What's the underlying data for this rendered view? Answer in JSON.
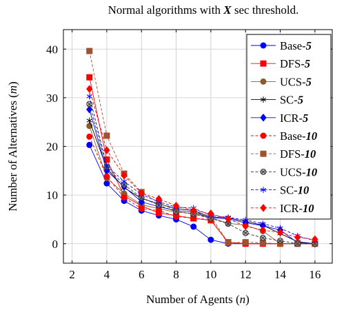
{
  "chart_data": {
    "type": "line",
    "title_parts": [
      {
        "text": "Normal algorithms with ",
        "italic": false,
        "bold": false
      },
      {
        "text": "X",
        "italic": true,
        "bold": true
      },
      {
        "text": " sec threshold.",
        "italic": false,
        "bold": false
      }
    ],
    "xlabel_parts": [
      {
        "text": "Number of Agents (",
        "italic": false
      },
      {
        "text": "n",
        "italic": true
      },
      {
        "text": ")",
        "italic": false
      }
    ],
    "ylabel_parts": [
      {
        "text": "Number of Alternatives (",
        "italic": false
      },
      {
        "text": "m",
        "italic": true
      },
      {
        "text": ")",
        "italic": false
      }
    ],
    "xlim": [
      1.5,
      17
    ],
    "ylim": [
      -4,
      44
    ],
    "xticks": [
      2,
      4,
      6,
      8,
      10,
      12,
      14,
      16
    ],
    "yticks": [
      0,
      10,
      20,
      30,
      40
    ],
    "grid": true,
    "legend_position": "top-right",
    "series": [
      {
        "name": "Base-",
        "suffix": "5",
        "color": "#0000ff",
        "marker": "circle",
        "dashed": false,
        "filled": true,
        "x": [
          3,
          4,
          5,
          6,
          7,
          8,
          9,
          10,
          11,
          12,
          13,
          14,
          15,
          16
        ],
        "y": [
          20.3,
          12.4,
          8.8,
          6.8,
          5.8,
          5,
          3.5,
          0.8,
          0,
          0,
          0,
          0,
          0,
          0
        ]
      },
      {
        "name": "DFS-",
        "suffix": "5",
        "color": "#ff0000",
        "marker": "square",
        "dashed": false,
        "filled": true,
        "x": [
          3,
          4,
          5,
          6,
          7,
          8,
          9,
          10,
          11,
          12,
          13,
          14,
          15,
          16
        ],
        "y": [
          34.2,
          17.3,
          9.8,
          7.8,
          6.3,
          5.8,
          5.2,
          4.8,
          0.3,
          0,
          0,
          0,
          0,
          0
        ]
      },
      {
        "name": "UCS-",
        "suffix": "5",
        "color": "#8b5a2b",
        "marker": "circle",
        "dashed": false,
        "filled": true,
        "x": [
          3,
          4,
          5,
          6,
          7,
          8,
          9,
          10,
          11,
          12,
          13,
          14,
          15,
          16
        ],
        "y": [
          24.2,
          13.5,
          10.3,
          8,
          7.2,
          6.5,
          6.2,
          5.3,
          4.2,
          3.8,
          2.6,
          0,
          0,
          0
        ]
      },
      {
        "name": "SC-",
        "suffix": "5",
        "color": "#000000",
        "marker": "star",
        "dashed": false,
        "filled": true,
        "x": [
          3,
          4,
          5,
          6,
          7,
          8,
          9,
          10,
          11,
          12,
          13,
          14,
          15,
          16
        ],
        "y": [
          25.3,
          15.5,
          11.5,
          9.3,
          8.2,
          7.2,
          6.8,
          5.5,
          5.3,
          4.6,
          3.8,
          2.1,
          0.4,
          0
        ]
      },
      {
        "name": "ICR-",
        "suffix": "5",
        "color": "#0000ff",
        "marker": "diamond",
        "dashed": false,
        "filled": true,
        "x": [
          3,
          4,
          5,
          6,
          7,
          8,
          9,
          10,
          11,
          12,
          13,
          14,
          15,
          16
        ],
        "y": [
          27.6,
          15,
          11.7,
          8.6,
          7.6,
          6.8,
          6.5,
          5.3,
          5.1,
          4.3,
          3.7,
          2.8,
          0.2,
          0
        ]
      },
      {
        "name": "Base-",
        "suffix": "10",
        "color": "#ff0000",
        "marker": "circle",
        "dashed": true,
        "filled": true,
        "x": [
          3,
          4,
          5,
          6,
          7,
          8,
          9,
          10,
          11,
          12,
          13,
          14,
          15,
          16
        ],
        "y": [
          22,
          13.8,
          9.5,
          7.2,
          6.8,
          5.6,
          5.2,
          5,
          0.1,
          0,
          0,
          0,
          0,
          0
        ]
      },
      {
        "name": "DFS-",
        "suffix": "10",
        "color": "#a0522d",
        "marker": "square",
        "dashed": true,
        "filled": true,
        "x": [
          3,
          4,
          5,
          6,
          7,
          8,
          9,
          10,
          11,
          12,
          13,
          14,
          15,
          16
        ],
        "y": [
          39.6,
          22.2,
          14.4,
          10.6,
          8.4,
          6.8,
          6.5,
          5.6,
          0.2,
          0.3,
          0.2,
          0,
          0,
          0
        ]
      },
      {
        "name": "UCS-",
        "suffix": "10",
        "color": "#333333",
        "marker": "otimes",
        "dashed": true,
        "filled": false,
        "x": [
          3,
          4,
          5,
          6,
          7,
          8,
          9,
          10,
          11,
          12,
          13,
          14,
          15,
          16
        ],
        "y": [
          28.7,
          15.8,
          12.1,
          9.5,
          7.9,
          6.6,
          6.1,
          5.2,
          4.1,
          2.2,
          1.2,
          0.6,
          0,
          0
        ]
      },
      {
        "name": "SC-",
        "suffix": "10",
        "color": "#0000ff",
        "marker": "star",
        "dashed": true,
        "filled": true,
        "x": [
          3,
          4,
          5,
          6,
          7,
          8,
          9,
          10,
          11,
          12,
          13,
          14,
          15,
          16
        ],
        "y": [
          30.3,
          16,
          12.8,
          10.1,
          8.6,
          7.5,
          7.3,
          5.8,
          5.4,
          4.9,
          4.1,
          3.2,
          1.6,
          0.6
        ]
      },
      {
        "name": "ICR-",
        "suffix": "10",
        "color": "#ff0000",
        "marker": "diamond",
        "dashed": true,
        "filled": true,
        "x": [
          3,
          4,
          5,
          6,
          7,
          8,
          9,
          10,
          11,
          12,
          13,
          14,
          15,
          16
        ],
        "y": [
          31.8,
          19.2,
          14,
          10.4,
          9.2,
          7.8,
          6.8,
          6.2,
          5.1,
          3.6,
          2.8,
          2.3,
          1.3,
          0.9
        ]
      }
    ]
  }
}
